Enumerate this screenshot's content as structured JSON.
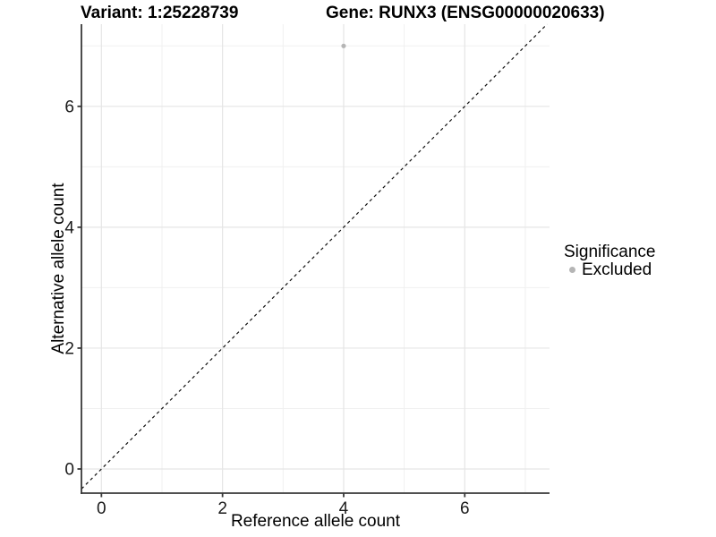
{
  "chart_data": {
    "type": "scatter",
    "title_left": "Variant: 1:25228739",
    "title_right": "Gene: RUNX3 (ENSG00000020633)",
    "xlabel": "Reference allele count",
    "ylabel": "Alternative allele count",
    "xlim": [
      -0.33,
      7.4
    ],
    "ylim": [
      -0.4,
      7.36
    ],
    "xticks": [
      0,
      2,
      4,
      6
    ],
    "yticks": [
      0,
      2,
      4,
      6
    ],
    "xticks_minor": [
      1,
      3,
      5,
      7
    ],
    "yticks_minor": [
      1,
      3,
      5,
      7
    ],
    "grid": "major and minor gridlines, white panel background",
    "reference_line": {
      "kind": "identity",
      "equation": "y = x",
      "style": "dashed",
      "color": "#111111"
    },
    "series": [
      {
        "name": "Excluded",
        "marker": "circle",
        "color": "#b5b5b5",
        "points": [
          {
            "x": 4,
            "y": 7
          }
        ]
      }
    ],
    "legend": {
      "title": "Significance",
      "position": "right",
      "items": [
        {
          "label": "Excluded",
          "color": "#b5b5b5"
        }
      ]
    }
  },
  "colors": {
    "background": "#ffffff",
    "grid_major": "#e5e5e5",
    "grid_minor": "#f0f0f0",
    "axis": "#383838",
    "tick_label": "#1a1a1a",
    "title_text": "#000000"
  }
}
